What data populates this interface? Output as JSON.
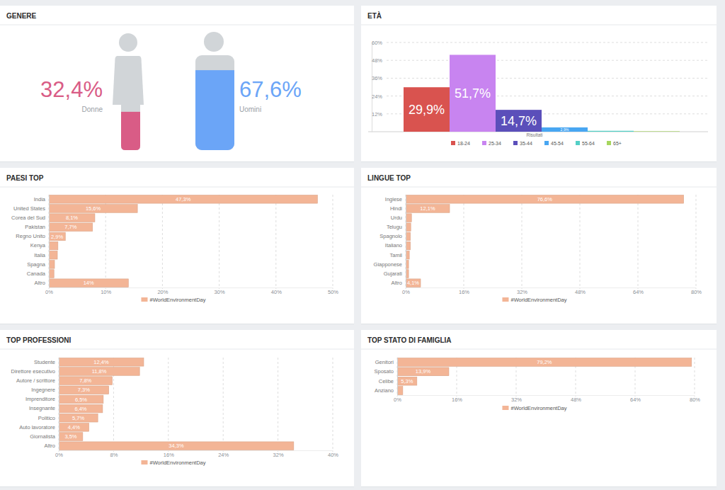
{
  "chart_data": [
    {
      "type": "pictogram",
      "title": "GENERE",
      "categories": [
        "Donne",
        "Uomini"
      ],
      "values": [
        32.4,
        67.6
      ],
      "value_labels": [
        "32,4%",
        "67,6%"
      ],
      "colors": [
        "#d95c86",
        "#6ba5f7"
      ],
      "data_labels": true
    },
    {
      "type": "bar",
      "title": "ETÀ",
      "xlabel": "Risultati",
      "categories": [
        "18-24",
        "25-34",
        "35-44",
        "45-54",
        "55-64",
        "65+"
      ],
      "values": [
        29.9,
        51.7,
        14.7,
        2.9,
        0.6,
        0.3
      ],
      "value_labels": [
        "29,9%",
        "51,7%",
        "14,7%",
        "2,9%",
        null,
        null
      ],
      "colors": [
        "#d9534f",
        "#c884f0",
        "#5b4fba",
        "#48a6f2",
        "#54cfc6",
        "#a6d65f"
      ],
      "ylim": [
        0,
        60
      ],
      "yticks": [
        {
          "value": 12,
          "label": "12%"
        },
        {
          "value": 24,
          "label": "24%"
        },
        {
          "value": 36,
          "label": "36%"
        },
        {
          "value": 48,
          "label": "48%"
        },
        {
          "value": 60,
          "label": "60%"
        }
      ],
      "grid": true,
      "legend": "bottom",
      "data_labels": true,
      "tick_labels": "y"
    },
    {
      "type": "bar",
      "orientation": "horizontal",
      "title": "PAESI TOP",
      "categories": [
        "India",
        "United States",
        "Corea del Sud",
        "Pakistan",
        "Regno Unito",
        "Kenya",
        "Italia",
        "Spagna",
        "Canada",
        "Altro"
      ],
      "series": [
        {
          "name": "#WorldEnvironmentDay",
          "color": "#f3b596",
          "values": [
            47.3,
            15.6,
            8.1,
            7.7,
            2.9,
            1.6,
            1.5,
            1.0,
            0.9,
            14
          ],
          "value_labels": [
            "47,3%",
            "15,6%",
            "8,1%",
            "7,7%",
            "2,9%",
            null,
            null,
            null,
            null,
            "14%"
          ]
        }
      ],
      "xlim": [
        0,
        50
      ],
      "xticks": [
        {
          "value": 0,
          "label": "0%"
        },
        {
          "value": 10,
          "label": "10%"
        },
        {
          "value": 20,
          "label": "20%"
        },
        {
          "value": 30,
          "label": "30%"
        },
        {
          "value": 40,
          "label": "40%"
        },
        {
          "value": 50,
          "label": "50%"
        }
      ],
      "grid": true,
      "legend": "bottom",
      "data_labels": true
    },
    {
      "type": "bar",
      "orientation": "horizontal",
      "title": "LINGUE TOP",
      "categories": [
        "Inglese",
        "Hindi",
        "Urdu",
        "Telugu",
        "Spagnolo",
        "Italiano",
        "Tamil",
        "Giapponese",
        "Gujarati",
        "Altro"
      ],
      "series": [
        {
          "name": "#WorldEnvironmentDay",
          "color": "#f3b596",
          "values": [
            76.6,
            12.1,
            1.6,
            1.4,
            1.3,
            1.3,
            1.0,
            0.8,
            0.8,
            4.1
          ],
          "value_labels": [
            "76,6%",
            "12,1%",
            null,
            null,
            null,
            null,
            null,
            null,
            null,
            "4,1%"
          ]
        }
      ],
      "xlim": [
        0,
        80
      ],
      "xticks": [
        {
          "value": 0,
          "label": "0%"
        },
        {
          "value": 16,
          "label": "16%"
        },
        {
          "value": 32,
          "label": "32%"
        },
        {
          "value": 48,
          "label": "48%"
        },
        {
          "value": 64,
          "label": "64%"
        },
        {
          "value": 80,
          "label": "80%"
        }
      ],
      "grid": true,
      "legend": "bottom",
      "data_labels": true
    },
    {
      "type": "bar",
      "orientation": "horizontal",
      "title": "TOP PROFESSIONI",
      "categories": [
        "Studente",
        "Direttore esecutivo",
        "Autore / scrittore",
        "Ingegnere",
        "Imprenditore",
        "Insegnante",
        "Politico",
        "Auto lavoratore",
        "Giornalista",
        "Altro"
      ],
      "series": [
        {
          "name": "#WorldEnvironmentDay",
          "color": "#f3b596",
          "values": [
            12.4,
            11.8,
            7.8,
            7.3,
            6.5,
            6.4,
            5.7,
            4.4,
            3.5,
            34.3
          ],
          "value_labels": [
            "12,4%",
            "11,8%",
            "7,8%",
            "7,3%",
            "6,5%",
            "6,4%",
            "5,7%",
            "4,4%",
            "3,5%",
            "34,3%"
          ]
        }
      ],
      "xlim": [
        0,
        40
      ],
      "xticks": [
        {
          "value": 0,
          "label": "0%"
        },
        {
          "value": 8,
          "label": "8%"
        },
        {
          "value": 16,
          "label": "16%"
        },
        {
          "value": 24,
          "label": "24%"
        },
        {
          "value": 32,
          "label": "32%"
        },
        {
          "value": 40,
          "label": "40%"
        }
      ],
      "grid": true,
      "legend": "bottom",
      "data_labels": true
    },
    {
      "type": "bar",
      "orientation": "horizontal",
      "title": "TOP STATO DI FAMIGLIA",
      "categories": [
        "Genitori",
        "Sposato",
        "Celibe",
        "Anziano"
      ],
      "series": [
        {
          "name": "#WorldEnvironmentDay",
          "color": "#f3b596",
          "values": [
            79.2,
            13.9,
            5.3,
            1.5
          ],
          "value_labels": [
            "79,2%",
            "13,9%",
            "5,3%",
            null
          ]
        }
      ],
      "xlim": [
        0,
        80
      ],
      "xticks": [
        {
          "value": 0,
          "label": "0%"
        },
        {
          "value": 16,
          "label": "16%"
        },
        {
          "value": 32,
          "label": "32%"
        },
        {
          "value": 48,
          "label": "48%"
        },
        {
          "value": 64,
          "label": "64%"
        },
        {
          "value": 80,
          "label": "80%"
        }
      ],
      "grid": true,
      "legend": "bottom",
      "data_labels": true
    }
  ]
}
